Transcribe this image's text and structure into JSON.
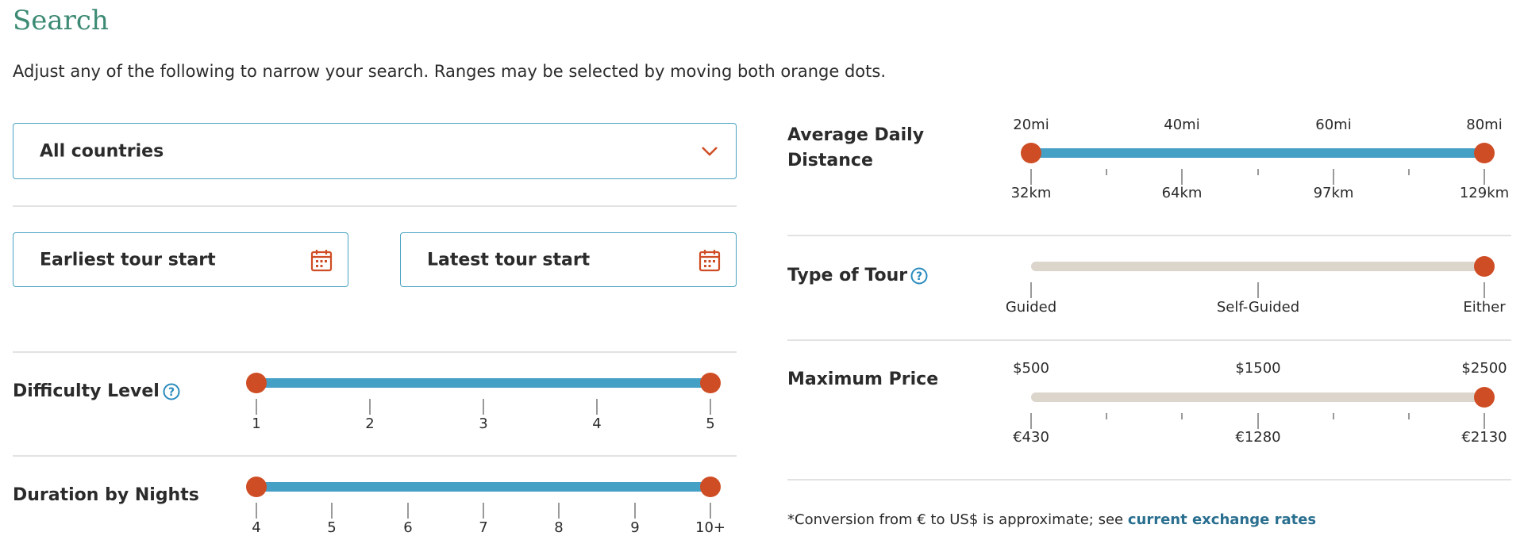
{
  "page": {
    "title": "Search",
    "intro": "Adjust any of the following to narrow your search. Ranges may be selected by moving both orange dots."
  },
  "country_select": {
    "value": "All countries",
    "icon": "chevron-down-icon"
  },
  "dates": {
    "earliest_placeholder": "Earliest tour start",
    "latest_placeholder": "Latest tour start",
    "icon": "calendar-icon"
  },
  "difficulty": {
    "label": "Difficulty Level",
    "ticks": [
      "1",
      "2",
      "3",
      "4",
      "5"
    ],
    "range": [
      "1",
      "5"
    ]
  },
  "duration": {
    "label": "Duration by Nights",
    "ticks": [
      "4",
      "5",
      "6",
      "7",
      "8",
      "9",
      "10+"
    ],
    "range": [
      "4",
      "10+"
    ]
  },
  "distance": {
    "label_line1": "Average Daily",
    "label_line2": "Distance",
    "top_labels": [
      "20mi",
      "40mi",
      "60mi",
      "80mi"
    ],
    "bottom_labels": [
      "32km",
      "64km",
      "97km",
      "129km"
    ],
    "range": [
      "20mi",
      "80mi"
    ]
  },
  "tour_type": {
    "label": "Type of Tour",
    "options": [
      "Guided",
      "Self-Guided",
      "Either"
    ],
    "selected": "Either"
  },
  "price": {
    "label": "Maximum Price",
    "top_labels": [
      "$500",
      "$1500",
      "$2500"
    ],
    "bottom_labels": [
      "€430",
      "€1280",
      "€2130"
    ],
    "selected": "$2500"
  },
  "footnote": {
    "text": "*Conversion from € to US$ is approximate; see ",
    "link": "current exchange rates"
  },
  "colors": {
    "accent_orange": "#cf4d24",
    "track_blue": "#45a0c6",
    "track_beige": "#dbd5cc",
    "title_green": "#3d8a74",
    "link_blue": "#2a6f8f"
  }
}
